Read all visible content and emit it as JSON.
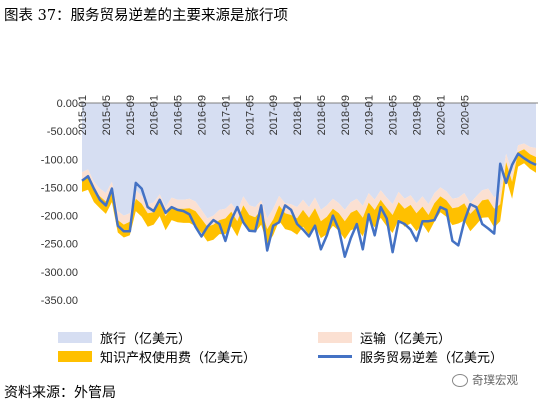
{
  "title": "图表 37：服务贸易逆差的主要来源是旅行项",
  "source": "资料来源：外管局",
  "watermark": "奇璞宏观",
  "colors": {
    "travel": "#d6def2",
    "transport": "#fbe0d2",
    "ip": "#ffc000",
    "deficit": "#4472c4"
  },
  "chart_data": {
    "type": "area",
    "start_month": "2015-01",
    "x_tick_labels": [
      "2015-01",
      "2015-05",
      "2015-09",
      "2016-01",
      "2016-05",
      "2016-09",
      "2017-01",
      "2017-05",
      "2017-09",
      "2018-01",
      "2018-05",
      "2018-09",
      "2019-01",
      "2019-05",
      "2019-09",
      "2020-01",
      "2020-05"
    ],
    "y_ticks": [
      0,
      -50,
      -100,
      -150,
      -200,
      -250,
      -300,
      -350
    ],
    "y_tick_labels": [
      "0.00",
      "-50.00",
      "-100.00",
      "-150.00",
      "-200.00",
      "-250.00",
      "-300.00",
      "-350.00"
    ],
    "ylim": [
      -350,
      0
    ],
    "series": [
      {
        "name": "旅行（亿美元）",
        "type": "area",
        "values": [
          -123,
          -118,
          -140,
          -152,
          -160,
          -140,
          -192,
          -200,
          -196,
          -155,
          -165,
          -180,
          -177,
          -162,
          -185,
          -168,
          -172,
          -172,
          -170,
          -175,
          -190,
          -205,
          -200,
          -190,
          -188,
          -178,
          -193,
          -166,
          -182,
          -185,
          -173,
          -205,
          -188,
          -165,
          -178,
          -180,
          -185,
          -172,
          -185,
          -168,
          -190,
          -182,
          -170,
          -178,
          -190,
          -176,
          -170,
          -183,
          -160,
          -172,
          -155,
          -168,
          -180,
          -158,
          -170,
          -164,
          -178,
          -166,
          -180,
          -160,
          -150,
          -157,
          -170,
          -168,
          -160,
          -178,
          -166,
          -155,
          -152,
          -168,
          -158,
          -90,
          -124,
          -75,
          -72,
          -78,
          -80
        ]
      },
      {
        "name": "运输（亿美元）",
        "type": "area",
        "values": [
          -15,
          -15,
          -14,
          -14,
          -15,
          -13,
          -16,
          -16,
          -15,
          -15,
          -14,
          -16,
          -17,
          -15,
          -16,
          -16,
          -16,
          -16,
          -17,
          -17,
          -16,
          -15,
          -16,
          -18,
          -17,
          -15,
          -17,
          -16,
          -17,
          -18,
          -17,
          -19,
          -19,
          -17,
          -18,
          -19,
          -20,
          -18,
          -19,
          -19,
          -20,
          -20,
          -18,
          -18,
          -20,
          -19,
          -20,
          -21,
          -17,
          -18,
          -17,
          -18,
          -19,
          -18,
          -18,
          -17,
          -18,
          -18,
          -19,
          -18,
          -16,
          -16,
          -17,
          -17,
          -18,
          -19,
          -20,
          -18,
          -19,
          -20,
          -22,
          -15,
          -16,
          -12,
          -10,
          -13,
          -16
        ]
      },
      {
        "name": "知识产权使用费（亿美元）",
        "type": "area",
        "values": [
          -20,
          -21,
          -22,
          -21,
          -22,
          -23,
          -22,
          -23,
          -24,
          -22,
          -23,
          -24,
          -22,
          -24,
          -25,
          -24,
          -24,
          -25,
          -26,
          -27,
          -25,
          -26,
          -27,
          -25,
          -28,
          -26,
          -27,
          -26,
          -27,
          -27,
          -26,
          -27,
          -28,
          -27,
          -28,
          -28,
          -29,
          -30,
          -30,
          -31,
          -30,
          -31,
          -30,
          -31,
          -32,
          -31,
          -32,
          -33,
          -30,
          -31,
          -32,
          -33,
          -32,
          -31,
          -32,
          -33,
          -32,
          -31,
          -32,
          -33,
          -28,
          -29,
          -30,
          -29,
          -31,
          -31,
          -30,
          -31,
          -32,
          -33,
          -30,
          -29,
          -30,
          -26,
          -25,
          -26,
          -28
        ]
      },
      {
        "name": "服务贸易逆差（亿美元）",
        "type": "line",
        "values": [
          -138,
          -130,
          -152,
          -172,
          -182,
          -152,
          -218,
          -228,
          -228,
          -142,
          -152,
          -185,
          -192,
          -172,
          -195,
          -185,
          -190,
          -192,
          -198,
          -220,
          -237,
          -220,
          -208,
          -215,
          -245,
          -208,
          -185,
          -212,
          -227,
          -228,
          -182,
          -262,
          -218,
          -212,
          -182,
          -190,
          -215,
          -225,
          -237,
          -218,
          -260,
          -235,
          -200,
          -225,
          -273,
          -240,
          -215,
          -260,
          -198,
          -235,
          -185,
          -205,
          -265,
          -210,
          -215,
          -225,
          -245,
          -210,
          -210,
          -208,
          -185,
          -190,
          -245,
          -253,
          -210,
          -180,
          -185,
          -215,
          -223,
          -232,
          -108,
          -142,
          -110,
          -90,
          -98,
          -105,
          -110
        ]
      }
    ],
    "legend_position": "bottom"
  }
}
